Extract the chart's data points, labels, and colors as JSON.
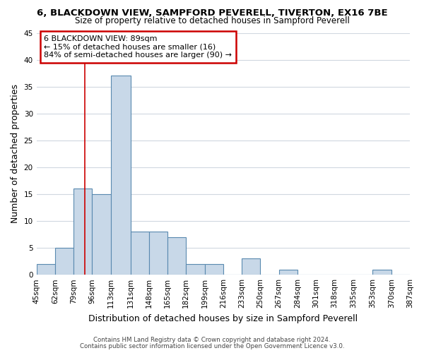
{
  "title_line1": "6, BLACKDOWN VIEW, SAMPFORD PEVERELL, TIVERTON, EX16 7BE",
  "title_line2": "Size of property relative to detached houses in Sampford Peverell",
  "xlabel": "Distribution of detached houses by size in Sampford Peverell",
  "ylabel": "Number of detached properties",
  "bin_edges": [
    45,
    62,
    79,
    96,
    113,
    131,
    148,
    165,
    182,
    199,
    216,
    233,
    250,
    267,
    284,
    301,
    318,
    335,
    353,
    370,
    387
  ],
  "counts": [
    2,
    5,
    16,
    15,
    37,
    8,
    8,
    7,
    2,
    2,
    0,
    3,
    0,
    1,
    0,
    0,
    0,
    0,
    1,
    0
  ],
  "bar_color": "#c8d8e8",
  "bar_edge_color": "#5a8ab0",
  "bar_linewidth": 0.8,
  "vline_x": 89,
  "vline_color": "#cc0000",
  "ylim": [
    0,
    45
  ],
  "yticks": [
    0,
    5,
    10,
    15,
    20,
    25,
    30,
    35,
    40,
    45
  ],
  "annotation_title": "6 BLACKDOWN VIEW: 89sqm",
  "annotation_line1": "← 15% of detached houses are smaller (16)",
  "annotation_line2": "84% of semi-detached houses are larger (90) →",
  "annotation_box_color": "#ffffff",
  "annotation_box_edge_color": "#cc0000",
  "footer_line1": "Contains HM Land Registry data © Crown copyright and database right 2024.",
  "footer_line2": "Contains public sector information licensed under the Open Government Licence v3.0.",
  "background_color": "#ffffff",
  "grid_color": "#d0d8e0",
  "tick_label_fontsize": 7.5,
  "axis_label_fontsize": 9,
  "title1_fontsize": 9.5,
  "title2_fontsize": 8.5,
  "annotation_fontsize": 8.0,
  "footer_fontsize": 6.2
}
